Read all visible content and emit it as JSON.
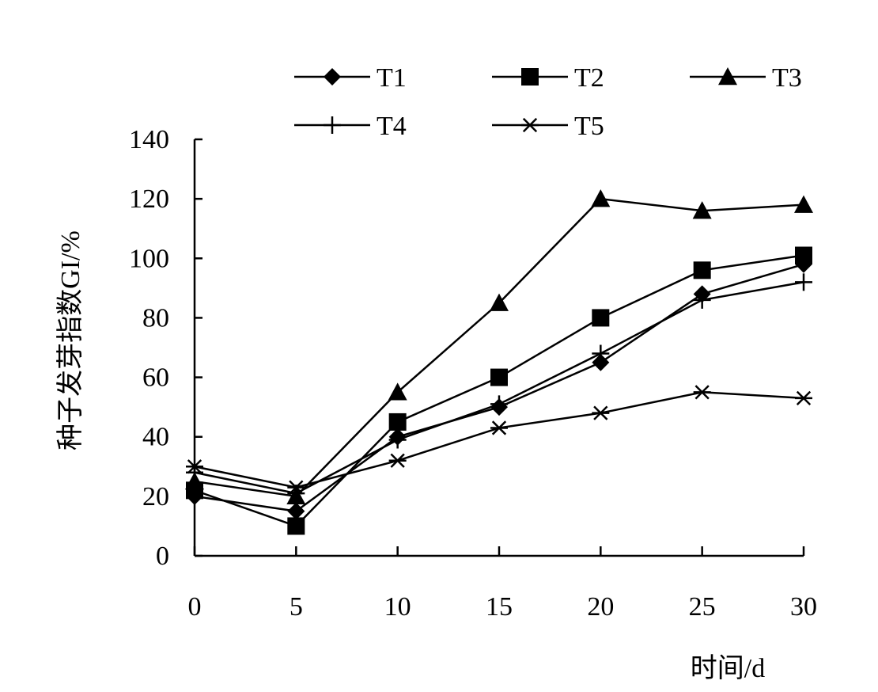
{
  "chart_data": {
    "type": "line",
    "title": "",
    "xlabel": "时间/d",
    "ylabel": "种子发芽指数GI/%",
    "x": [
      0,
      5,
      10,
      15,
      20,
      25,
      30
    ],
    "xlim": [
      0,
      30
    ],
    "ylim": [
      0,
      140
    ],
    "x_ticks": [
      "0",
      "5",
      "10",
      "15",
      "20",
      "25",
      "30"
    ],
    "y_ticks": [
      "0",
      "20",
      "40",
      "60",
      "80",
      "100",
      "120",
      "140"
    ],
    "grid": false,
    "legend_position": "top",
    "series": [
      {
        "name": "T1",
        "marker": "diamond",
        "values": [
          20,
          15,
          40,
          50,
          65,
          88,
          98
        ]
      },
      {
        "name": "T2",
        "marker": "square",
        "values": [
          22,
          10,
          45,
          60,
          80,
          96,
          101
        ]
      },
      {
        "name": "T3",
        "marker": "triangle",
        "values": [
          25,
          20,
          55,
          85,
          120,
          116,
          118
        ]
      },
      {
        "name": "T4",
        "marker": "plus",
        "values": [
          28,
          21,
          39,
          51,
          68,
          86,
          92
        ]
      },
      {
        "name": "T5",
        "marker": "asterisk",
        "values": [
          30,
          23,
          32,
          43,
          48,
          55,
          53
        ]
      }
    ],
    "line_color": "#000000"
  }
}
